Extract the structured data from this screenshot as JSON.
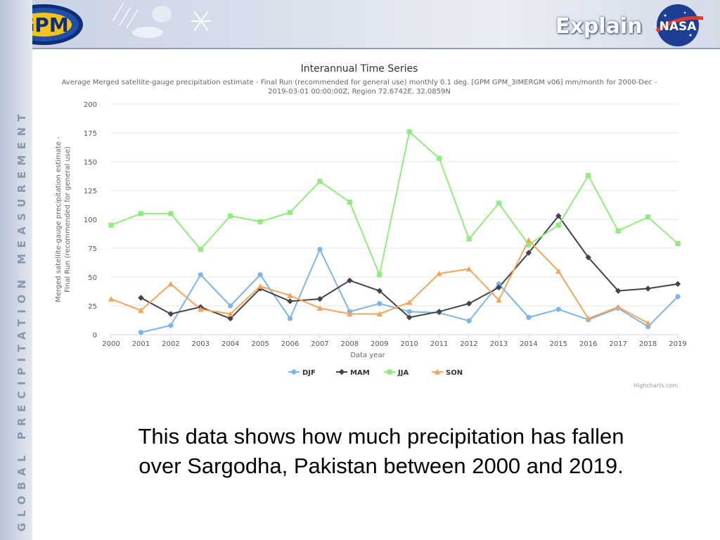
{
  "header": {
    "title": "Explain",
    "gpm_logo_text": "GPM",
    "gpm_logo_ring_text": "GLOBAL PRECIPITATION MEASUREMENT",
    "nasa_logo_text": "NASA"
  },
  "side_band_text": "GLOBAL PRECIPITATION MEASUREMENT",
  "caption": {
    "line1": "This data shows how much precipitation has fallen",
    "line2": "over Sargodha, Pakistan between 2000 and 2019."
  },
  "credit": "Highcharts.com",
  "colors": {
    "DJF": "#7cb5ec",
    "MAM": "#434348",
    "JJA": "#90ed7d",
    "SON": "#f7a35c"
  },
  "chart_data": {
    "type": "line",
    "title": "Interannual Time Series",
    "subtitle_line1": "Average Merged satellite-gauge precipitation estimate - Final Run (recommended for general use) monthly 0.1 deg. [GPM GPM_3IMERGM v06] mm/month for 2000-Dec -",
    "subtitle_line2": "2019-03-01 00:00:00Z, Region 72.6742E, 32.0859N",
    "xlabel": "Data year",
    "ylabel_line1": "Merged satellite-gauge precipitation estimate -",
    "ylabel_line2": "Final Run (recommended for general use)",
    "x": [
      2000,
      2001,
      2002,
      2003,
      2004,
      2005,
      2006,
      2007,
      2008,
      2009,
      2010,
      2011,
      2012,
      2013,
      2014,
      2015,
      2016,
      2017,
      2018,
      2019
    ],
    "ylim": [
      0,
      200
    ],
    "yticks": [
      0,
      25,
      50,
      75,
      100,
      125,
      150,
      175,
      200
    ],
    "grid": true,
    "legend_position": "bottom-center",
    "series": [
      {
        "name": "DJF",
        "marker": "circle",
        "values": [
          null,
          2,
          8,
          52,
          25,
          52,
          14,
          74,
          20,
          27,
          20,
          19,
          12,
          44,
          15,
          22,
          13,
          23,
          7,
          33
        ]
      },
      {
        "name": "MAM",
        "marker": "diamond",
        "values": [
          null,
          32,
          18,
          24,
          14,
          40,
          29,
          31,
          47,
          38,
          15,
          20,
          27,
          41,
          71,
          103,
          67,
          38,
          40,
          44
        ]
      },
      {
        "name": "JJA",
        "marker": "square",
        "values": [
          95,
          105,
          105,
          74,
          103,
          98,
          106,
          133,
          115,
          52,
          176,
          153,
          83,
          114,
          78,
          95,
          138,
          90,
          102,
          79
        ]
      },
      {
        "name": "SON",
        "marker": "triangle",
        "values": [
          31,
          21,
          44,
          22,
          18,
          42,
          34,
          23,
          18,
          18,
          28,
          53,
          57,
          30,
          82,
          55,
          14,
          24,
          10,
          null
        ]
      }
    ]
  }
}
